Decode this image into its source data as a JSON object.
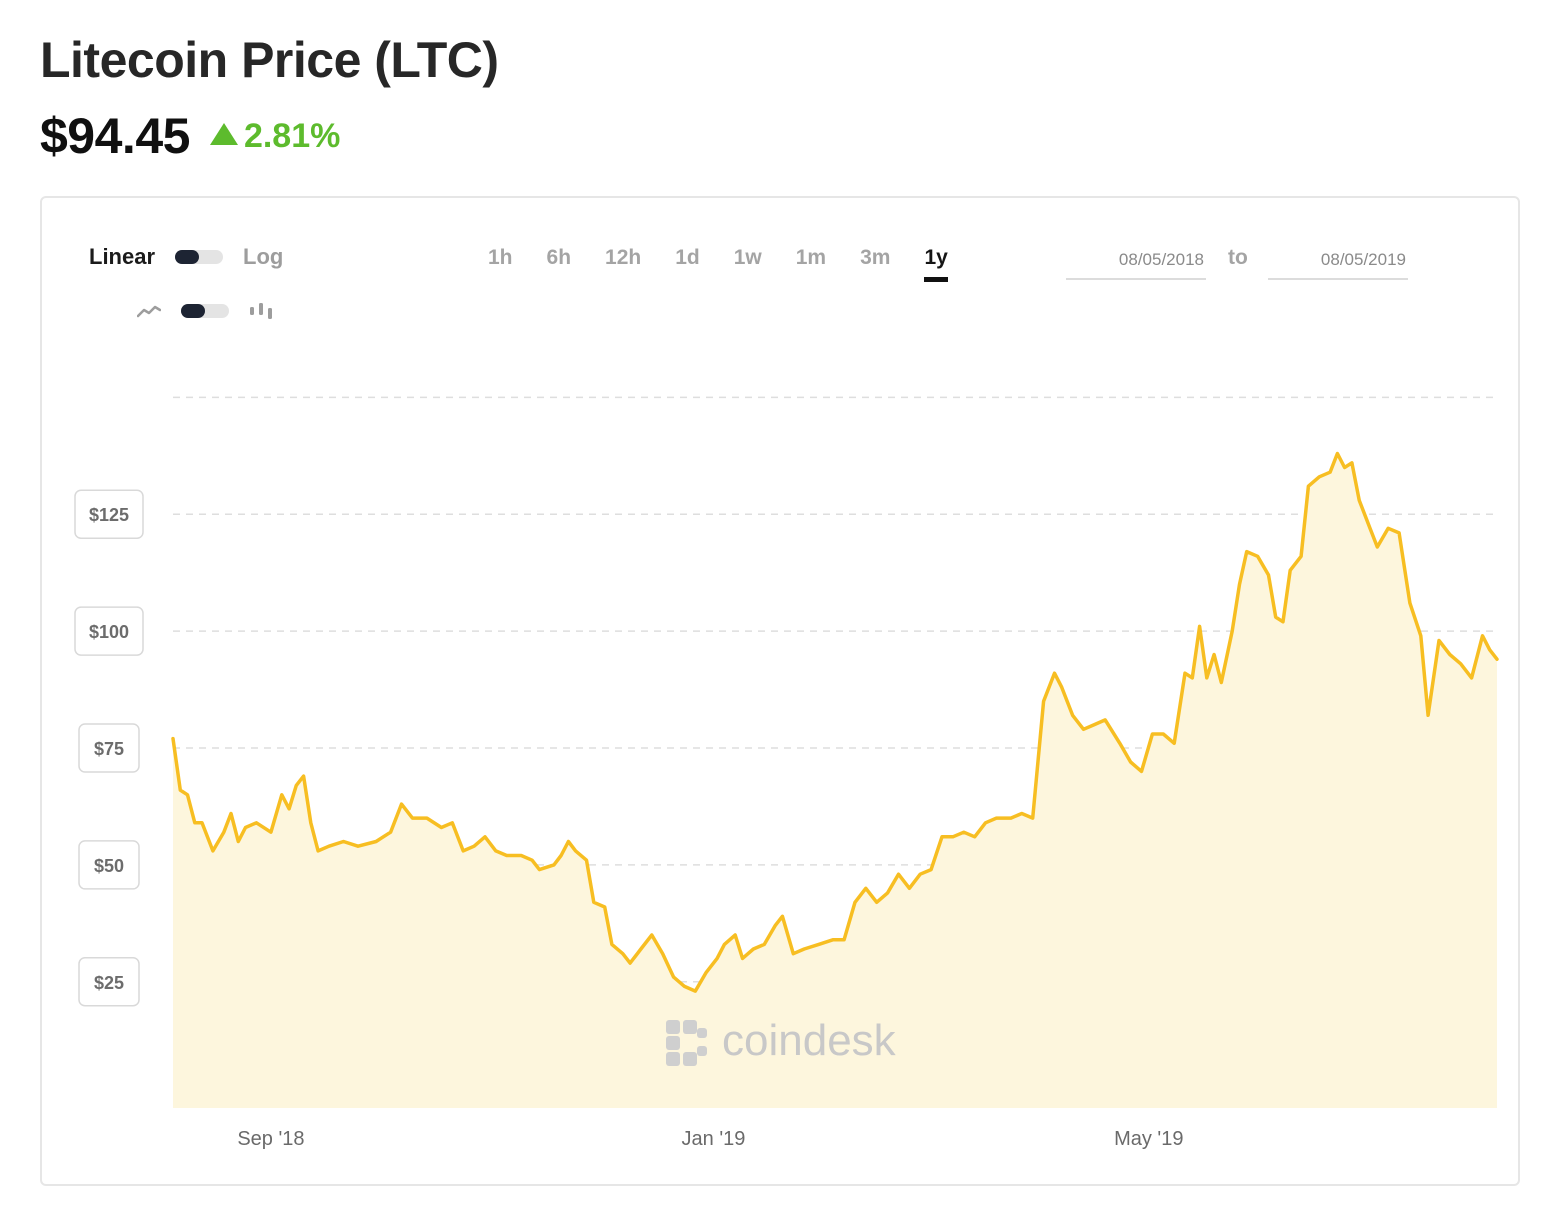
{
  "header": {
    "title": "Litecoin Price (LTC)",
    "price": "$94.45",
    "change": "2.81%",
    "change_color": "#5dbb2d"
  },
  "controls": {
    "scale_options": [
      "Linear",
      "Log"
    ],
    "scale_selected": "Linear",
    "chart_style_icons": [
      "line-chart-icon",
      "candlestick-icon"
    ],
    "chart_style_selected": "line",
    "ranges": [
      "1h",
      "6h",
      "12h",
      "1d",
      "1w",
      "1m",
      "3m",
      "1y"
    ],
    "range_selected": "1y",
    "date_from": "08/05/2018",
    "date_to_label": "to",
    "date_to": "08/05/2019"
  },
  "watermark": "coindesk",
  "chart_data": {
    "type": "area",
    "title": "",
    "xlabel": "",
    "ylabel": "",
    "line_color": "#f7be22",
    "fill_color": "#fdf6dd",
    "grid": "horizontal-dashed",
    "x_range": [
      "2018-08-05",
      "2019-08-05"
    ],
    "y_range": [
      -2,
      152
    ],
    "y_ticks": [
      25,
      50,
      75,
      100,
      125
    ],
    "y_tick_labels": [
      "$25",
      "$50",
      "$75",
      "$100",
      "$125"
    ],
    "x_ticks": [
      "2018-09-01",
      "2019-01-01",
      "2019-05-01"
    ],
    "x_tick_labels": [
      "Sep '18",
      "Jan '19",
      "May '19"
    ],
    "series": [
      {
        "points": [
          [
            "2018-08-05",
            77
          ],
          [
            "2018-08-07",
            66
          ],
          [
            "2018-08-09",
            65
          ],
          [
            "2018-08-11",
            59
          ],
          [
            "2018-08-13",
            59
          ],
          [
            "2018-08-16",
            53
          ],
          [
            "2018-08-19",
            57
          ],
          [
            "2018-08-21",
            61
          ],
          [
            "2018-08-23",
            55
          ],
          [
            "2018-08-25",
            58
          ],
          [
            "2018-08-28",
            59
          ],
          [
            "2018-09-01",
            57
          ],
          [
            "2018-09-04",
            65
          ],
          [
            "2018-09-06",
            62
          ],
          [
            "2018-09-08",
            67
          ],
          [
            "2018-09-10",
            69
          ],
          [
            "2018-09-12",
            59
          ],
          [
            "2018-09-14",
            53
          ],
          [
            "2018-09-17",
            54
          ],
          [
            "2018-09-21",
            55
          ],
          [
            "2018-09-25",
            54
          ],
          [
            "2018-09-30",
            55
          ],
          [
            "2018-10-04",
            57
          ],
          [
            "2018-10-07",
            63
          ],
          [
            "2018-10-10",
            60
          ],
          [
            "2018-10-14",
            60
          ],
          [
            "2018-10-18",
            58
          ],
          [
            "2018-10-21",
            59
          ],
          [
            "2018-10-24",
            53
          ],
          [
            "2018-10-27",
            54
          ],
          [
            "2018-10-30",
            56
          ],
          [
            "2018-11-02",
            53
          ],
          [
            "2018-11-05",
            52
          ],
          [
            "2018-11-09",
            52
          ],
          [
            "2018-11-12",
            51
          ],
          [
            "2018-11-14",
            49
          ],
          [
            "2018-11-18",
            50
          ],
          [
            "2018-11-20",
            52
          ],
          [
            "2018-11-22",
            55
          ],
          [
            "2018-11-24",
            53
          ],
          [
            "2018-11-27",
            51
          ],
          [
            "2018-11-29",
            42
          ],
          [
            "2018-12-02",
            41
          ],
          [
            "2018-12-04",
            33
          ],
          [
            "2018-12-07",
            31
          ],
          [
            "2018-12-09",
            29
          ],
          [
            "2018-12-12",
            32
          ],
          [
            "2018-12-15",
            35
          ],
          [
            "2018-12-18",
            31
          ],
          [
            "2018-12-21",
            26
          ],
          [
            "2018-12-24",
            24
          ],
          [
            "2018-12-27",
            23
          ],
          [
            "2018-12-30",
            27
          ],
          [
            "2019-01-02",
            30
          ],
          [
            "2019-01-04",
            33
          ],
          [
            "2019-01-07",
            35
          ],
          [
            "2019-01-09",
            30
          ],
          [
            "2019-01-12",
            32
          ],
          [
            "2019-01-15",
            33
          ],
          [
            "2019-01-18",
            37
          ],
          [
            "2019-01-20",
            39
          ],
          [
            "2019-01-23",
            31
          ],
          [
            "2019-01-26",
            32
          ],
          [
            "2019-01-30",
            33
          ],
          [
            "2019-02-03",
            34
          ],
          [
            "2019-02-06",
            34
          ],
          [
            "2019-02-09",
            42
          ],
          [
            "2019-02-12",
            45
          ],
          [
            "2019-02-15",
            42
          ],
          [
            "2019-02-18",
            44
          ],
          [
            "2019-02-21",
            48
          ],
          [
            "2019-02-24",
            45
          ],
          [
            "2019-02-27",
            48
          ],
          [
            "2019-03-02",
            49
          ],
          [
            "2019-03-05",
            56
          ],
          [
            "2019-03-08",
            56
          ],
          [
            "2019-03-11",
            57
          ],
          [
            "2019-03-14",
            56
          ],
          [
            "2019-03-17",
            59
          ],
          [
            "2019-03-20",
            60
          ],
          [
            "2019-03-24",
            60
          ],
          [
            "2019-03-27",
            61
          ],
          [
            "2019-03-30",
            60
          ],
          [
            "2019-04-02",
            85
          ],
          [
            "2019-04-05",
            91
          ],
          [
            "2019-04-07",
            88
          ],
          [
            "2019-04-10",
            82
          ],
          [
            "2019-04-13",
            79
          ],
          [
            "2019-04-16",
            80
          ],
          [
            "2019-04-19",
            81
          ],
          [
            "2019-04-23",
            76
          ],
          [
            "2019-04-26",
            72
          ],
          [
            "2019-04-29",
            70
          ],
          [
            "2019-05-02",
            78
          ],
          [
            "2019-05-05",
            78
          ],
          [
            "2019-05-08",
            76
          ],
          [
            "2019-05-11",
            91
          ],
          [
            "2019-05-13",
            90
          ],
          [
            "2019-05-15",
            101
          ],
          [
            "2019-05-17",
            90
          ],
          [
            "2019-05-19",
            95
          ],
          [
            "2019-05-21",
            89
          ],
          [
            "2019-05-24",
            100
          ],
          [
            "2019-05-26",
            110
          ],
          [
            "2019-05-28",
            117
          ],
          [
            "2019-05-31",
            116
          ],
          [
            "2019-06-03",
            112
          ],
          [
            "2019-06-05",
            103
          ],
          [
            "2019-06-07",
            102
          ],
          [
            "2019-06-09",
            113
          ],
          [
            "2019-06-12",
            116
          ],
          [
            "2019-06-14",
            131
          ],
          [
            "2019-06-17",
            133
          ],
          [
            "2019-06-20",
            134
          ],
          [
            "2019-06-22",
            138
          ],
          [
            "2019-06-24",
            135
          ],
          [
            "2019-06-26",
            136
          ],
          [
            "2019-06-28",
            128
          ],
          [
            "2019-07-01",
            122
          ],
          [
            "2019-07-03",
            118
          ],
          [
            "2019-07-06",
            122
          ],
          [
            "2019-07-09",
            121
          ],
          [
            "2019-07-12",
            106
          ],
          [
            "2019-07-15",
            99
          ],
          [
            "2019-07-17",
            82
          ],
          [
            "2019-07-20",
            98
          ],
          [
            "2019-07-23",
            95
          ],
          [
            "2019-07-26",
            93
          ],
          [
            "2019-07-29",
            90
          ],
          [
            "2019-08-01",
            99
          ],
          [
            "2019-08-03",
            96
          ],
          [
            "2019-08-05",
            94
          ]
        ]
      }
    ]
  }
}
